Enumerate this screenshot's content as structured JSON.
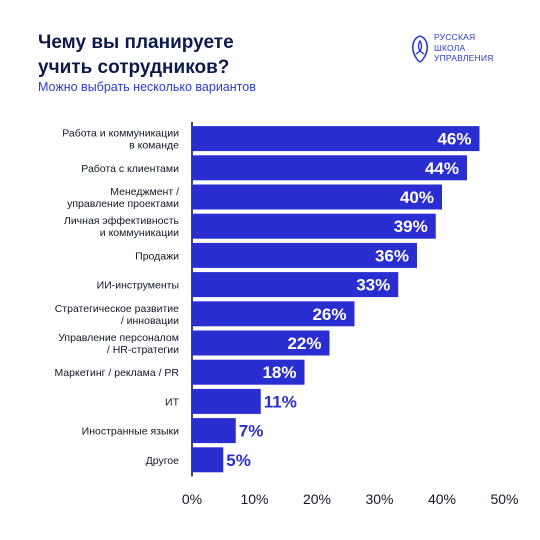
{
  "header": {
    "title_line1": "Чему вы планируете",
    "title_line2": "учить сотрудников?",
    "subtitle": "Можно выбрать несколько вариантов"
  },
  "logo": {
    "line1": "РУССКАЯ",
    "line2": "ШКОЛА",
    "line3": "УПРАВЛЕНИЯ"
  },
  "colors": {
    "bar": "#2a2ed1",
    "text_dark": "#0d1b4c",
    "accent": "#2a3cd1",
    "inside_label": "#ffffff"
  },
  "chart_data": {
    "type": "bar",
    "orientation": "horizontal",
    "title": "Чему вы планируете учить сотрудников?",
    "subtitle": "Можно выбрать несколько вариантов",
    "xlabel": "",
    "ylabel": "",
    "xlim": [
      0,
      50
    ],
    "ticks": [
      "0%",
      "10%",
      "20%",
      "30%",
      "40%",
      "50%"
    ],
    "tick_values": [
      0,
      10,
      20,
      30,
      40,
      50
    ],
    "grid": false,
    "categories": [
      [
        "Работа и коммуникации",
        "в команде"
      ],
      [
        "Работа с клиентами"
      ],
      [
        "Менеджмент /",
        "управление проектами"
      ],
      [
        "Личная эффективность",
        "и коммуникации"
      ],
      [
        "Продажи"
      ],
      [
        "ИИ-инструменты"
      ],
      [
        "Стратегическое развитие",
        "/ инновации"
      ],
      [
        "Управление персоналом",
        "/ HR-стратегии"
      ],
      [
        "Маркетинг / реклама / PR"
      ],
      [
        "ИТ"
      ],
      [
        "Иностранные языки"
      ],
      [
        "Другое"
      ]
    ],
    "values": [
      46,
      44,
      40,
      39,
      36,
      33,
      26,
      22,
      18,
      11,
      7,
      5
    ],
    "value_labels": [
      "46%",
      "44%",
      "40%",
      "39%",
      "36%",
      "33%",
      "26%",
      "22%",
      "18%",
      "11%",
      "7%",
      "5%"
    ]
  }
}
